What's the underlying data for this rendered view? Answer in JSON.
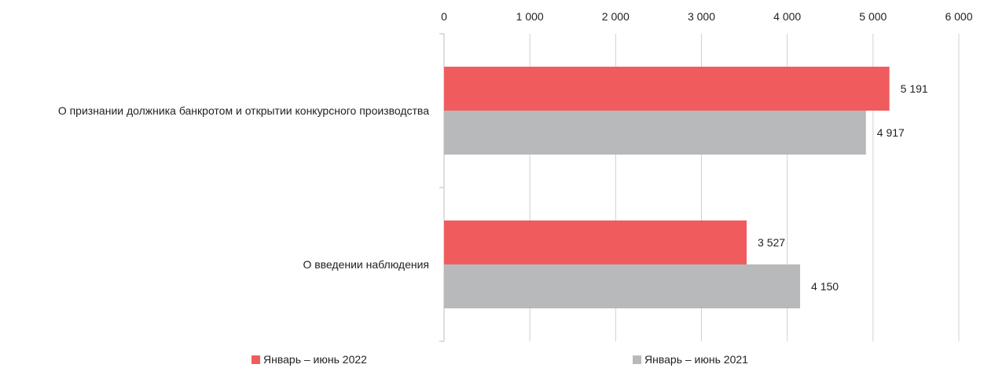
{
  "chart_data": {
    "type": "bar",
    "orientation": "horizontal",
    "categories": [
      "О признании должника банкротом и открытии конкурсного производства",
      "О введении наблюдения"
    ],
    "series": [
      {
        "name": "Январь – июнь 2022",
        "values": [
          5191,
          3527
        ],
        "labels": [
          "5 191",
          "3 527"
        ],
        "color": "#f05c5e"
      },
      {
        "name": "Январь – июнь 2021",
        "values": [
          4917,
          4150
        ],
        "labels": [
          "4 917",
          "4 150"
        ],
        "color": "#b8b9bb"
      }
    ],
    "xlim": [
      0,
      6000
    ],
    "ticks": [
      0,
      1000,
      2000,
      3000,
      4000,
      5000,
      6000
    ],
    "tick_labels": [
      "0",
      "1 000",
      "2 000",
      "3 000",
      "4 000",
      "5 000",
      "6 000"
    ],
    "grid": true,
    "legend": "bottom",
    "axis_position": "top"
  }
}
